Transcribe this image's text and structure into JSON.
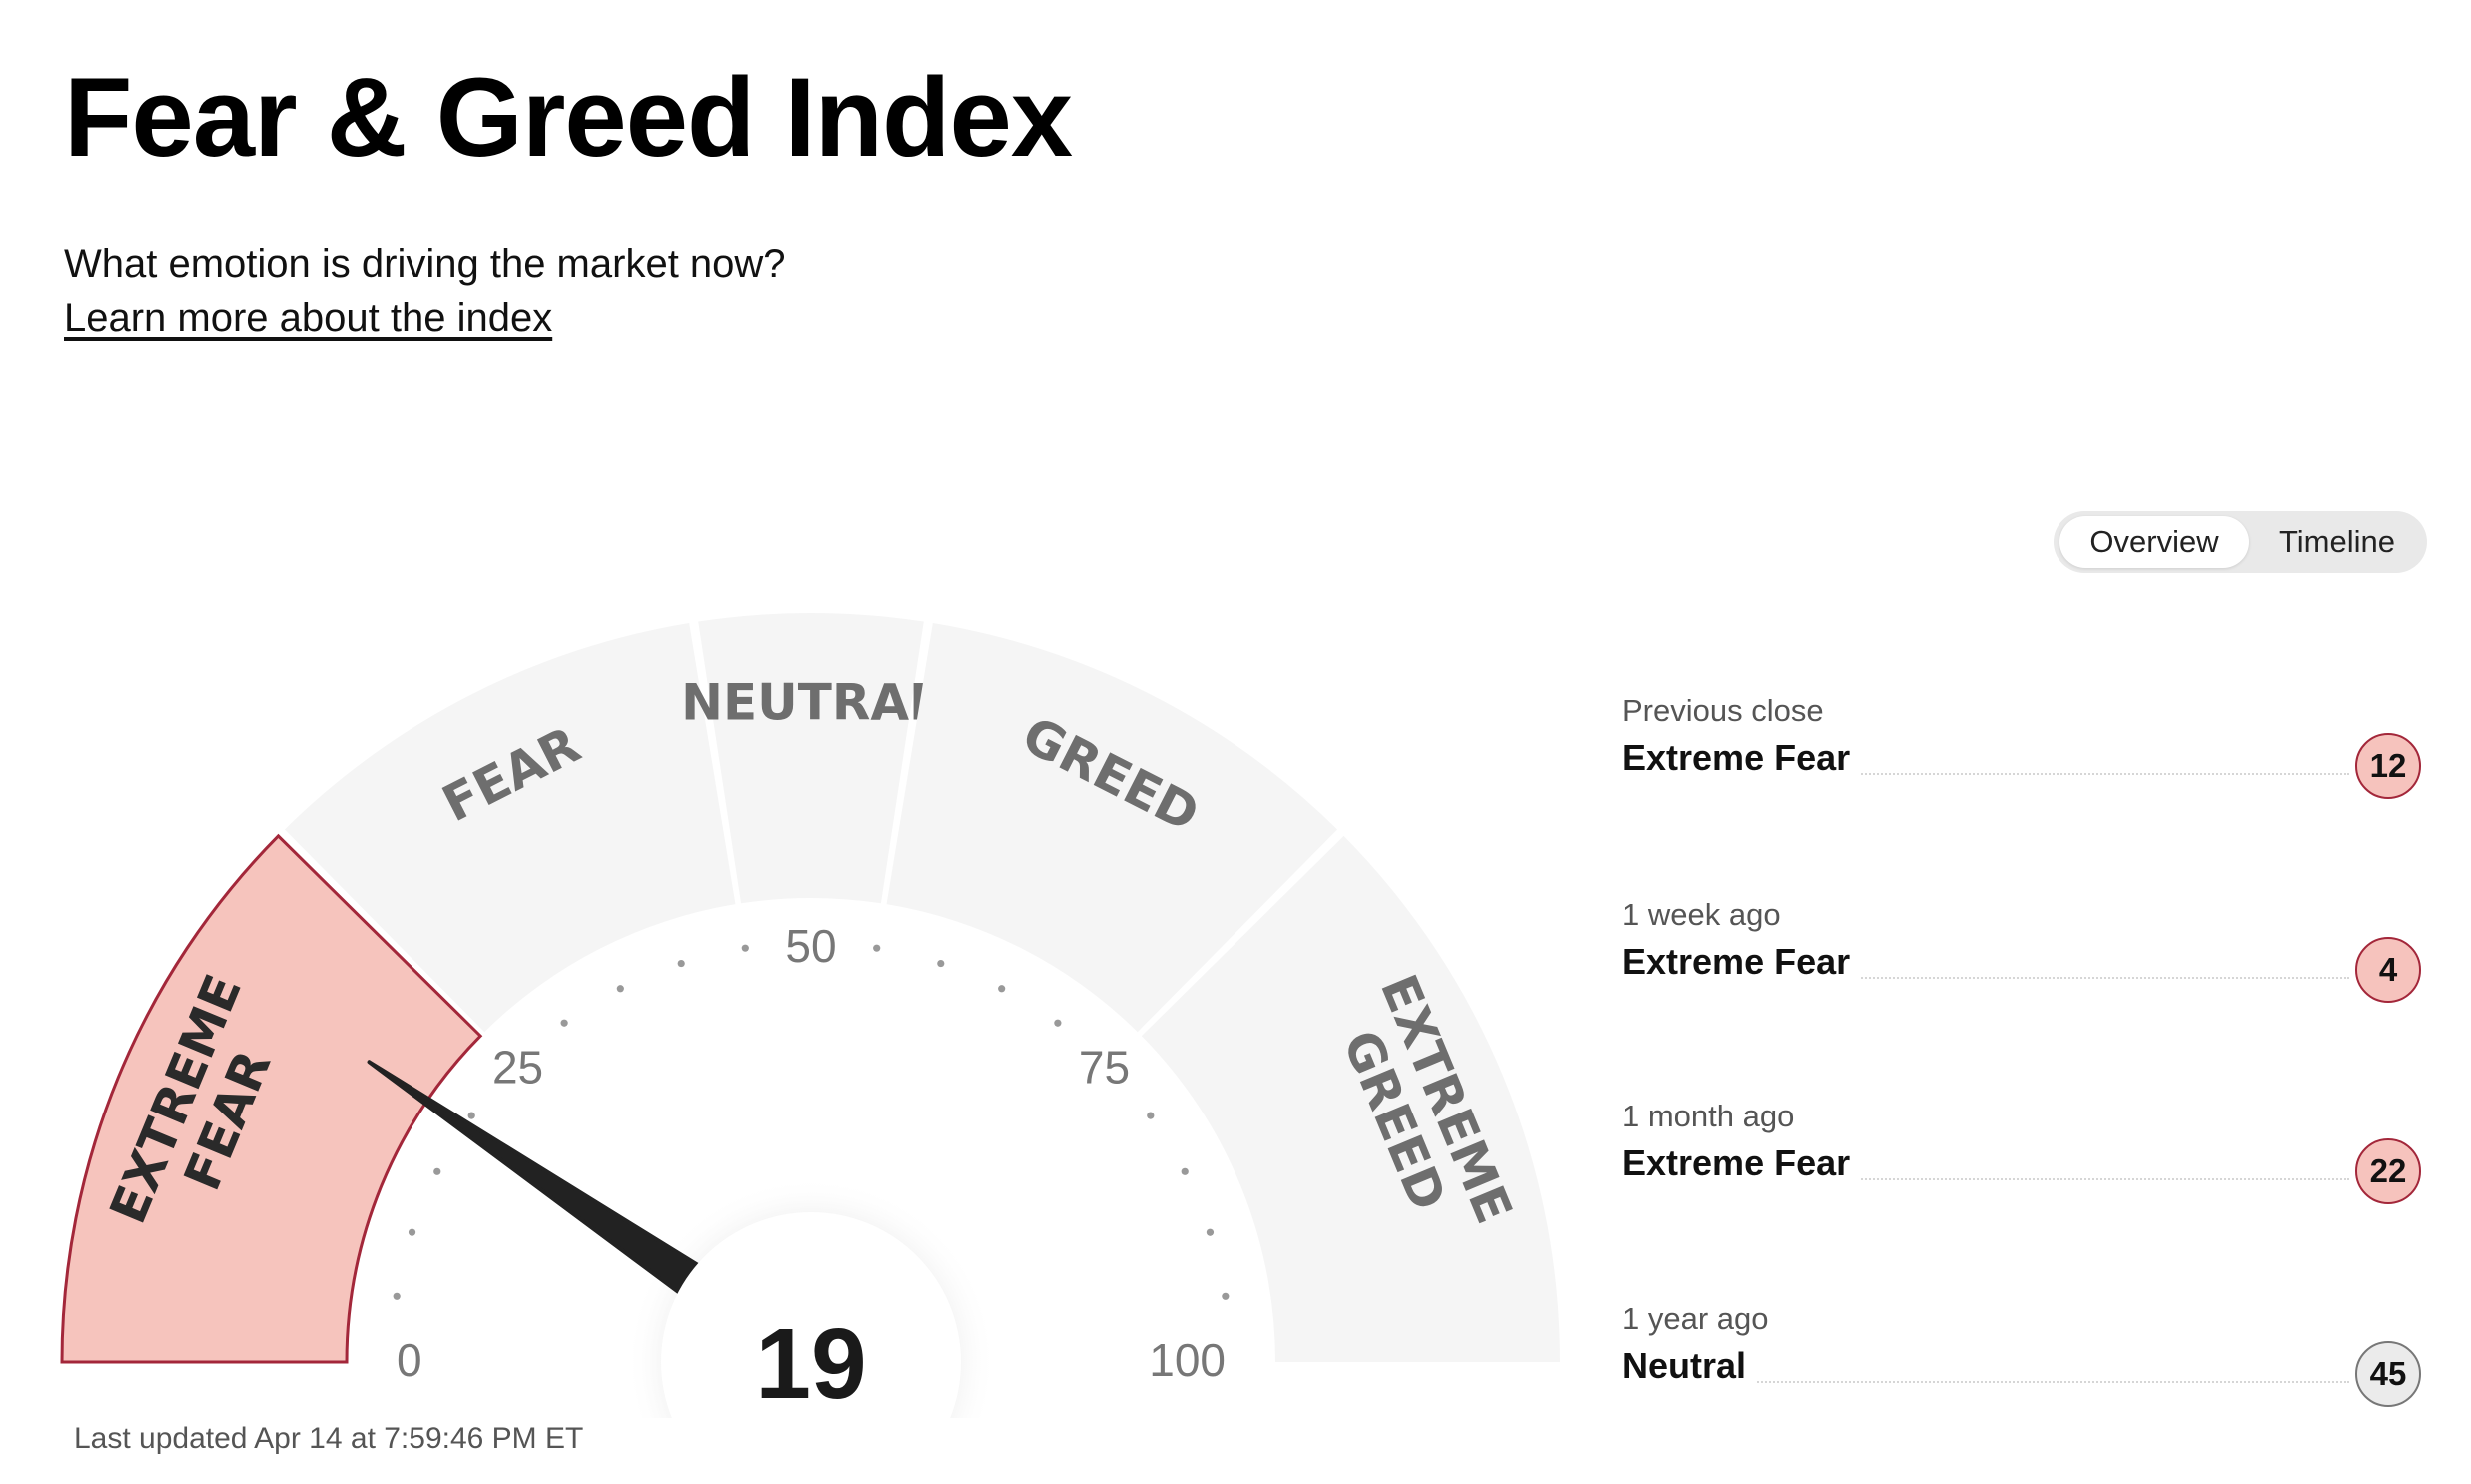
{
  "page": {
    "title": "Fear & Greed Index",
    "subtitle": "What emotion is driving the market now?",
    "learn_link": "Learn more about the index"
  },
  "view_toggle": {
    "options": [
      "Overview",
      "Timeline"
    ],
    "selected": "Overview"
  },
  "gauge": {
    "value": 19,
    "min": 0,
    "max": 100,
    "active_zone": "EXTREME FEAR",
    "zones": [
      {
        "lines": [
          "EXTREME",
          "FEAR"
        ],
        "from": 0,
        "to": 25
      },
      {
        "lines": [
          "FEAR"
        ],
        "from": 25,
        "to": 45
      },
      {
        "lines": [
          "NEUTRAL"
        ],
        "from": 45,
        "to": 55
      },
      {
        "lines": [
          "GREED"
        ],
        "from": 55,
        "to": 75
      },
      {
        "lines": [
          "EXTREME",
          "GREED"
        ],
        "from": 75,
        "to": 100
      }
    ],
    "tick_labels": [
      "0",
      "25",
      "50",
      "75",
      "100"
    ],
    "last_updated": "Last updated Apr 14 at 7:59:46 PM ET"
  },
  "history": [
    {
      "label": "Previous close",
      "rating": "Extreme Fear",
      "value": "12",
      "tone": "fear"
    },
    {
      "label": "1 week ago",
      "rating": "Extreme Fear",
      "value": "4",
      "tone": "fear"
    },
    {
      "label": "1 month ago",
      "rating": "Extreme Fear",
      "value": "22",
      "tone": "fear"
    },
    {
      "label": "1 year ago",
      "rating": "Neutral",
      "value": "45",
      "tone": "neutral"
    }
  ],
  "colors": {
    "active_zone_fill": "#f6c4bd",
    "active_zone_stroke": "#a3273a",
    "inactive_zone_fill": "#f5f5f5",
    "zone_text": "#6e6e6e",
    "needle": "#222222",
    "tick_text": "#777777",
    "dot": "#999999"
  }
}
